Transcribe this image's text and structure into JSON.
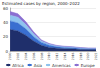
{
  "chart_data": {
    "type": "area",
    "title": "Estimated cases by region, 2000–2022",
    "categories": [
      "2000",
      "2002",
      "2004",
      "2006",
      "2008",
      "2010",
      "2012",
      "2014",
      "2016",
      "2018",
      "2020",
      "2022"
    ],
    "series": [
      {
        "name": "Africa",
        "color": "#1f2f6b",
        "values": [
          30,
          28,
          22,
          14,
          8,
          5,
          4,
          3,
          3,
          2,
          2,
          2
        ]
      },
      {
        "name": "Asia",
        "color": "#3a6fd0",
        "values": [
          12,
          11,
          9,
          6,
          4,
          3,
          2,
          2,
          1.5,
          1.5,
          1,
          1
        ]
      },
      {
        "name": "Americas",
        "color": "#8fc3ee",
        "values": [
          8,
          8,
          6,
          4,
          2,
          1.5,
          1,
          1,
          1,
          0.8,
          0.8,
          0.7
        ]
      },
      {
        "name": "Europe",
        "color": "#8a6fd1",
        "values": [
          5,
          5,
          4,
          3,
          1.5,
          1,
          0.8,
          0.6,
          0.5,
          0.5,
          0.4,
          0.4
        ]
      }
    ],
    "ylim": [
      0,
      60
    ],
    "yticks": [
      0,
      20,
      40,
      60
    ],
    "stacked": true,
    "grid": true,
    "legend": "bottom"
  }
}
